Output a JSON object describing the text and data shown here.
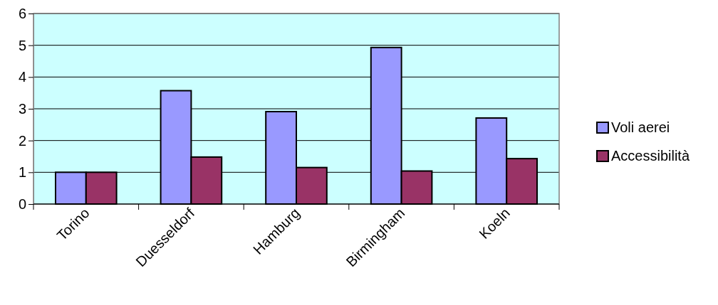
{
  "chart_data": {
    "type": "bar",
    "categories": [
      "Torino",
      "Duesseldorf",
      "Hamburg",
      "Birmingham",
      "Koeln"
    ],
    "series": [
      {
        "name": "Voli aerei",
        "color": "#9999ff",
        "values": [
          1,
          3.57,
          2.91,
          4.93,
          2.71
        ]
      },
      {
        "name": "Accessibilità",
        "color": "#993366",
        "values": [
          1,
          1.48,
          1.15,
          1.04,
          1.43
        ]
      }
    ],
    "ylim": [
      0,
      6
    ],
    "yticks": [
      0,
      1,
      2,
      3,
      4,
      5,
      6
    ],
    "grid": "y",
    "legend": "right"
  }
}
